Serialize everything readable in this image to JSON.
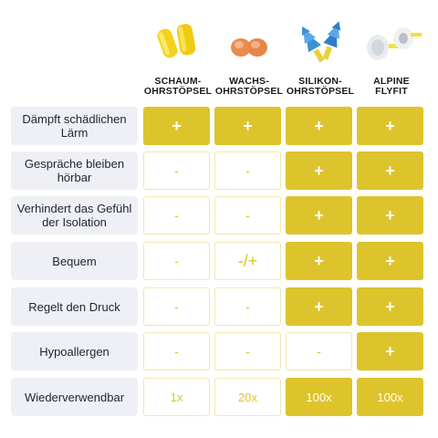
{
  "columns": [
    {
      "line1": "SCHAUM-",
      "line2": "OHRSTÖPSEL",
      "icon": "foam-earplugs-icon"
    },
    {
      "line1": "WACHS-",
      "line2": "OHRSTÖPSEL",
      "icon": "wax-earplugs-icon"
    },
    {
      "line1": "SILIKON-",
      "line2": "OHRSTÖPSEL",
      "icon": "silicone-earplugs-icon"
    },
    {
      "line1": "ALPINE",
      "line2": "FLYFIT",
      "icon": "alpine-flyfit-earplugs-icon"
    }
  ],
  "rows": [
    {
      "label": "Dämpft schädlichen Lärm",
      "cells": [
        "+",
        "+",
        "+",
        "+"
      ],
      "styles": [
        "y",
        "y",
        "y",
        "y"
      ]
    },
    {
      "label": "Gespräche bleiben hörbar",
      "cells": [
        "-",
        "-",
        "+",
        "+"
      ],
      "styles": [
        "w",
        "w",
        "y",
        "y"
      ]
    },
    {
      "label": "Verhindert das Gefühl der Isolation",
      "cells": [
        "-",
        "-",
        "+",
        "+"
      ],
      "styles": [
        "w",
        "w",
        "y",
        "y"
      ]
    },
    {
      "label": "Bequem",
      "cells": [
        "-",
        "-/+",
        "+",
        "+"
      ],
      "styles": [
        "w",
        "w",
        "y",
        "y"
      ]
    },
    {
      "label": "Regelt den Druck",
      "cells": [
        "-",
        "-",
        "+",
        "+"
      ],
      "styles": [
        "w",
        "w",
        "y",
        "y"
      ]
    },
    {
      "label": "Hypoallergen",
      "cells": [
        "-",
        "-",
        "-",
        "+"
      ],
      "styles": [
        "w",
        "w",
        "w",
        "y"
      ]
    },
    {
      "label": "Wiederverwendbar",
      "cells": [
        "1x",
        "20x",
        "100x",
        "100x"
      ],
      "styles": [
        "w",
        "w",
        "y",
        "y"
      ]
    }
  ],
  "colors": {
    "accent": "#ddc42c",
    "label_bg": "#eef0f5"
  }
}
